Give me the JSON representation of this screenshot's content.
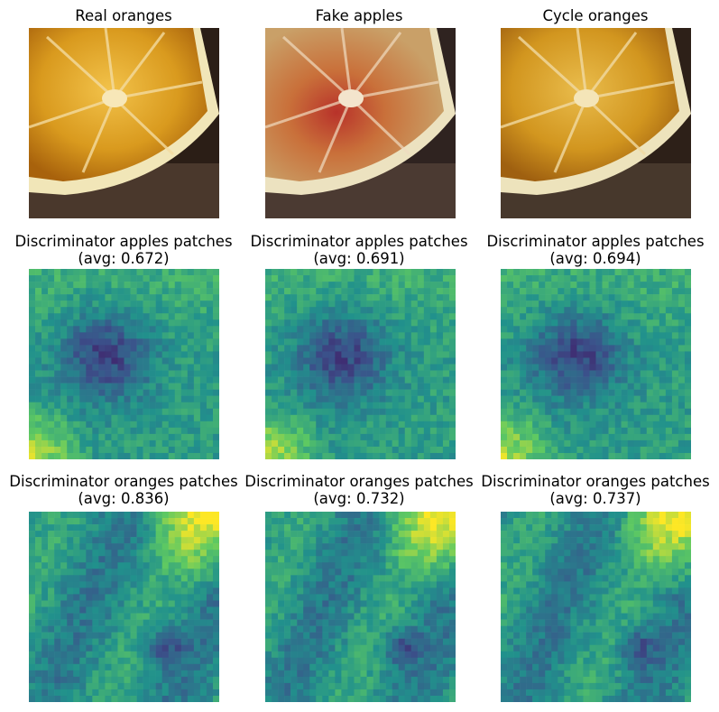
{
  "row1": {
    "titles": [
      "Real oranges",
      "Fake apples",
      "Cycle oranges"
    ],
    "images": [
      "orange-slice-photo",
      "orange-slice-translated-photo",
      "orange-slice-reconstructed-photo"
    ]
  },
  "row2": {
    "title": "Discriminator apples patches",
    "avgs": [
      "(avg: 0.672)",
      "(avg: 0.691)",
      "(avg: 0.694)"
    ]
  },
  "row3": {
    "title": "Discriminator oranges patches",
    "avgs": [
      "(avg: 0.836)",
      "(avg: 0.732)",
      "(avg: 0.737)"
    ]
  },
  "colormap": [
    "#440154",
    "#3b528b",
    "#21918c",
    "#5ec962",
    "#fde725"
  ],
  "heatmaps": {
    "grid": "30x30",
    "apples_real": {
      "mean": 0.672
    },
    "apples_fake": {
      "mean": 0.691
    },
    "apples_cycle": {
      "mean": 0.694
    },
    "oranges_real": {
      "mean": 0.836
    },
    "oranges_fake": {
      "mean": 0.732
    },
    "oranges_cycle": {
      "mean": 0.737
    }
  }
}
